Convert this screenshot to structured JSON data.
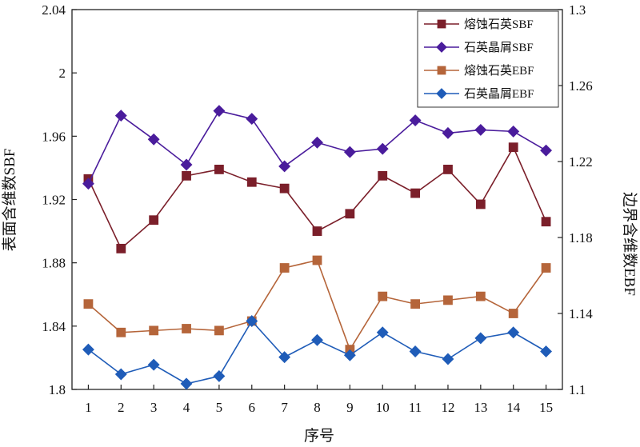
{
  "chart_data": {
    "type": "line",
    "xlabel": "序号",
    "ylabel_left": "表面含维数SBF",
    "ylabel_right": "边界含维数EBF",
    "x": [
      1,
      2,
      3,
      4,
      5,
      6,
      7,
      8,
      9,
      10,
      11,
      12,
      13,
      14,
      15
    ],
    "x_ticks": [
      "1",
      "2",
      "3",
      "4",
      "5",
      "6",
      "7",
      "8",
      "9",
      "10",
      "11",
      "12",
      "13",
      "14",
      "15"
    ],
    "ylim_left": [
      1.8,
      2.04
    ],
    "ylim_right": [
      1.1,
      1.3
    ],
    "yticks_left": [
      "1.8",
      "1.84",
      "1.88",
      "1.92",
      "1.96",
      "2",
      "2.04"
    ],
    "yticks_right": [
      "1.1",
      "1.14",
      "1.18",
      "1.22",
      "1.26",
      "1.3"
    ],
    "grid": false,
    "legend_position": "top-right",
    "series": [
      {
        "name": "熔蚀石英SBF",
        "axis": "left",
        "color": "#7b1f2a",
        "marker": "square",
        "values": [
          1.933,
          1.889,
          1.907,
          1.935,
          1.939,
          1.931,
          1.927,
          1.9,
          1.911,
          1.935,
          1.924,
          1.939,
          1.917,
          1.953,
          1.906
        ]
      },
      {
        "name": "石英晶屑SBF",
        "axis": "left",
        "color": "#4a1c9c",
        "marker": "diamond",
        "values": [
          1.93,
          1.973,
          1.958,
          1.942,
          1.976,
          1.971,
          1.941,
          1.956,
          1.95,
          1.952,
          1.97,
          1.962,
          1.964,
          1.963,
          1.951
        ]
      },
      {
        "name": "熔蚀石英EBF",
        "axis": "right",
        "color": "#b5653a",
        "marker": "square",
        "values": [
          1.145,
          1.13,
          1.131,
          1.132,
          1.131,
          1.136,
          1.164,
          1.168,
          1.121,
          1.149,
          1.145,
          1.147,
          1.149,
          1.14,
          1.164
        ]
      },
      {
        "name": "石英晶屑EBF",
        "axis": "right",
        "color": "#1f5cb8",
        "marker": "diamond",
        "values": [
          1.121,
          1.108,
          1.113,
          1.103,
          1.107,
          1.136,
          1.117,
          1.126,
          1.118,
          1.13,
          1.12,
          1.116,
          1.127,
          1.13,
          1.12
        ]
      }
    ]
  }
}
